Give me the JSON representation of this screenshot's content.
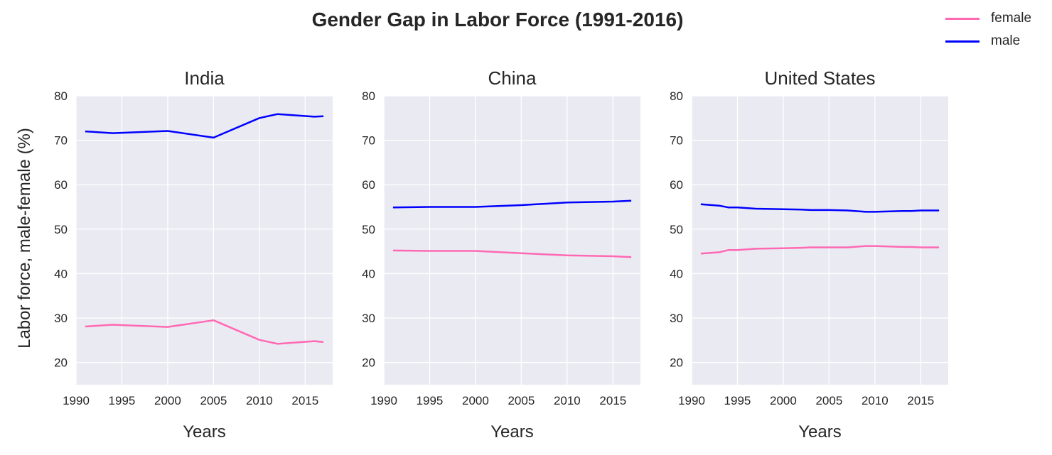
{
  "title": "Gender Gap in Labor Force (1991-2016)",
  "ylabel": "Labor force, male-female (%)",
  "legend": [
    {
      "name": "female",
      "color": "#ff69b4"
    },
    {
      "name": "male",
      "color": "#0000ff"
    }
  ],
  "chart_data": [
    {
      "type": "line",
      "title": "India",
      "xlabel": "Years",
      "ylabel": "Labor force, male-female (%)",
      "xlim": [
        1990,
        2018
      ],
      "ylim": [
        15,
        80
      ],
      "xticks": [
        "1990",
        "1995",
        "2000",
        "2005",
        "2010",
        "2015"
      ],
      "yticks": [
        "20",
        "30",
        "40",
        "50",
        "60",
        "70",
        "80"
      ],
      "grid": true,
      "series": [
        {
          "name": "female",
          "color": "#ff69b4",
          "x": [
            1991,
            1994,
            2000,
            2005,
            2010,
            2012,
            2016,
            2017
          ],
          "y": [
            28.1,
            28.5,
            28.0,
            29.5,
            25.1,
            24.2,
            24.8,
            24.6
          ]
        },
        {
          "name": "male",
          "color": "#0000ff",
          "x": [
            1991,
            1994,
            2000,
            2005,
            2010,
            2012,
            2016,
            2017
          ],
          "y": [
            72.0,
            71.6,
            72.1,
            70.6,
            75.0,
            75.9,
            75.3,
            75.4
          ]
        }
      ]
    },
    {
      "type": "line",
      "title": "China",
      "xlabel": "Years",
      "xlim": [
        1990,
        2018
      ],
      "ylim": [
        15,
        80
      ],
      "xticks": [
        "1990",
        "1995",
        "2000",
        "2005",
        "2010",
        "2015"
      ],
      "yticks": [
        "20",
        "30",
        "40",
        "50",
        "60",
        "70",
        "80"
      ],
      "grid": true,
      "series": [
        {
          "name": "female",
          "color": "#ff69b4",
          "x": [
            1991,
            1995,
            2000,
            2005,
            2010,
            2015,
            2017
          ],
          "y": [
            45.2,
            45.1,
            45.1,
            44.6,
            44.1,
            43.9,
            43.7
          ]
        },
        {
          "name": "male",
          "color": "#0000ff",
          "x": [
            1991,
            1995,
            2000,
            2005,
            2010,
            2015,
            2017
          ],
          "y": [
            54.9,
            55.0,
            55.0,
            55.4,
            56.0,
            56.2,
            56.4
          ]
        }
      ]
    },
    {
      "type": "line",
      "title": "United States",
      "xlabel": "Years",
      "xlim": [
        1990,
        2018
      ],
      "ylim": [
        15,
        80
      ],
      "xticks": [
        "1990",
        "1995",
        "2000",
        "2005",
        "2010",
        "2015"
      ],
      "yticks": [
        "20",
        "30",
        "40",
        "50",
        "60",
        "70",
        "80"
      ],
      "grid": true,
      "series": [
        {
          "name": "female",
          "color": "#ff69b4",
          "x": [
            1991,
            1993,
            1994,
            1995,
            1997,
            2000,
            2002,
            2003,
            2005,
            2007,
            2009,
            2010,
            2013,
            2014,
            2015,
            2017
          ],
          "y": [
            44.5,
            44.8,
            45.3,
            45.3,
            45.6,
            45.7,
            45.8,
            45.9,
            45.9,
            45.9,
            46.2,
            46.2,
            46.0,
            46.0,
            45.9,
            45.9
          ]
        },
        {
          "name": "male",
          "color": "#0000ff",
          "x": [
            1991,
            1993,
            1994,
            1995,
            1997,
            2000,
            2002,
            2003,
            2005,
            2007,
            2009,
            2010,
            2013,
            2014,
            2015,
            2017
          ],
          "y": [
            55.6,
            55.3,
            54.9,
            54.9,
            54.6,
            54.5,
            54.4,
            54.3,
            54.3,
            54.2,
            53.9,
            53.9,
            54.1,
            54.1,
            54.2,
            54.2
          ]
        }
      ]
    }
  ]
}
